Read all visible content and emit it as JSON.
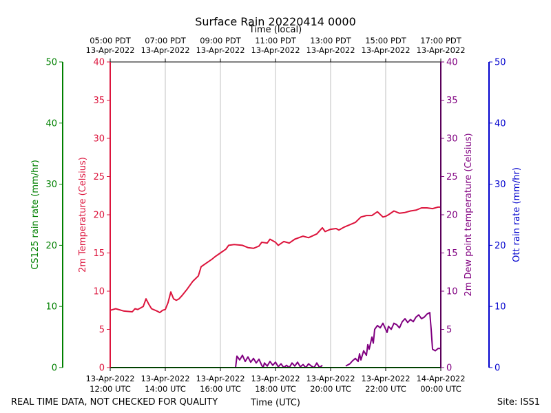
{
  "chart_data": {
    "type": "line",
    "title": "Surface Rain 20220414 0000",
    "top_axis_label": "Time (local)",
    "bottom_axis_label": "Time (UTC)",
    "footer_left": "REAL TIME DATA, NOT CHECKED FOR QUALITY",
    "footer_right": "Site: ISS1",
    "x_range_hours_utc": [
      12,
      24
    ],
    "bottom_ticks": [
      {
        "hour": 12,
        "line1": "13-Apr-2022",
        "line2": "12:00 UTC"
      },
      {
        "hour": 14,
        "line1": "13-Apr-2022",
        "line2": "14:00 UTC"
      },
      {
        "hour": 16,
        "line1": "13-Apr-2022",
        "line2": "16:00 UTC"
      },
      {
        "hour": 18,
        "line1": "13-Apr-2022",
        "line2": "18:00 UTC"
      },
      {
        "hour": 20,
        "line1": "13-Apr-2022",
        "line2": "20:00 UTC"
      },
      {
        "hour": 22,
        "line1": "13-Apr-2022",
        "line2": "22:00 UTC"
      },
      {
        "hour": 24,
        "line1": "14-Apr-2022",
        "line2": "00:00 UTC"
      }
    ],
    "top_ticks": [
      {
        "hour": 12,
        "line1": "05:00 PDT",
        "line2": "13-Apr-2022"
      },
      {
        "hour": 14,
        "line1": "07:00 PDT",
        "line2": "13-Apr-2022"
      },
      {
        "hour": 16,
        "line1": "09:00 PDT",
        "line2": "13-Apr-2022"
      },
      {
        "hour": 18,
        "line1": "11:00 PDT",
        "line2": "13-Apr-2022"
      },
      {
        "hour": 20,
        "line1": "13:00 PDT",
        "line2": "13-Apr-2022"
      },
      {
        "hour": 22,
        "line1": "15:00 PDT",
        "line2": "13-Apr-2022"
      },
      {
        "hour": 24,
        "line1": "17:00 PDT",
        "line2": "13-Apr-2022"
      }
    ],
    "axes": {
      "temperature": {
        "label": "2m Temperature (Celsius)",
        "ylim": [
          0,
          40
        ],
        "ticks": [
          0,
          5,
          10,
          15,
          20,
          25,
          30,
          35,
          40
        ],
        "color": "#dc143c"
      },
      "dewpoint": {
        "label": "2m Dew point temperature (Celsius)",
        "ylim": [
          0,
          40
        ],
        "ticks": [
          0,
          5,
          10,
          15,
          20,
          25,
          30,
          35,
          40
        ],
        "color": "#800080"
      },
      "cs125": {
        "label": "CS125 rain rate (mm/hr)",
        "ylim": [
          0,
          50
        ],
        "ticks": [
          0,
          10,
          20,
          30,
          40,
          50
        ],
        "color": "#008000"
      },
      "ott": {
        "label": "Ott rain rate (mm/hr)",
        "ylim": [
          0,
          50
        ],
        "ticks": [
          0,
          10,
          20,
          30,
          40,
          50
        ],
        "color": "#0000cd"
      }
    },
    "series": [
      {
        "name": "2m Temperature",
        "axis": "temperature",
        "color": "#dc143c",
        "x": [
          12.0,
          12.2,
          12.5,
          12.8,
          12.9,
          13.0,
          13.2,
          13.3,
          13.4,
          13.5,
          13.7,
          13.8,
          13.9,
          14.0,
          14.1,
          14.2,
          14.3,
          14.4,
          14.5,
          14.6,
          14.8,
          15.0,
          15.2,
          15.3,
          15.5,
          15.7,
          15.8,
          16.0,
          16.2,
          16.3,
          16.5,
          16.8,
          17.0,
          17.2,
          17.4,
          17.5,
          17.7,
          17.8,
          18.0,
          18.1,
          18.3,
          18.5,
          18.7,
          19.0,
          19.2,
          19.5,
          19.7,
          19.8,
          20.0,
          20.2,
          20.3,
          20.5,
          20.7,
          20.9,
          21.1,
          21.3,
          21.5,
          21.7,
          21.9,
          22.0,
          22.1,
          22.3,
          22.5,
          22.7,
          22.9,
          23.1,
          23.3,
          23.5,
          23.7,
          23.9,
          24.0
        ],
        "values": [
          7.5,
          7.7,
          7.4,
          7.3,
          7.7,
          7.6,
          8.0,
          9.0,
          8.3,
          7.7,
          7.4,
          7.2,
          7.5,
          7.6,
          8.5,
          9.9,
          9.0,
          8.8,
          9.0,
          9.4,
          10.3,
          11.3,
          12.0,
          13.2,
          13.7,
          14.2,
          14.5,
          15.0,
          15.5,
          16.0,
          16.1,
          16.0,
          15.7,
          15.6,
          15.9,
          16.4,
          16.3,
          16.8,
          16.4,
          16.0,
          16.5,
          16.3,
          16.8,
          17.2,
          17.0,
          17.5,
          18.3,
          17.8,
          18.1,
          18.2,
          18.0,
          18.4,
          18.7,
          19.0,
          19.7,
          19.9,
          19.9,
          20.4,
          19.7,
          19.8,
          20.0,
          20.5,
          20.2,
          20.3,
          20.5,
          20.6,
          20.9,
          20.9,
          20.8,
          21.0,
          21.0
        ]
      },
      {
        "name": "2m Dew point temperature",
        "axis": "dewpoint",
        "color": "#800080",
        "segments": [
          {
            "x": [
              16.55,
              16.6,
              16.7,
              16.8,
              16.9,
              17.0,
              17.1,
              17.2,
              17.3,
              17.4,
              17.5,
              17.55,
              17.6,
              17.7,
              17.8,
              17.9,
              18.0,
              18.1,
              18.2,
              18.3,
              18.4,
              18.5,
              18.6,
              18.7,
              18.8,
              18.9,
              19.0,
              19.1,
              19.2,
              19.3,
              19.4,
              19.5,
              19.6,
              19.7
            ],
            "values": [
              0.0,
              1.5,
              1.0,
              1.6,
              0.8,
              1.4,
              0.7,
              1.2,
              0.6,
              1.1,
              0.3,
              0.0,
              0.6,
              0.2,
              0.8,
              0.3,
              0.7,
              0.1,
              0.5,
              0.0,
              0.3,
              0.0,
              0.6,
              0.2,
              0.7,
              0.1,
              0.4,
              0.0,
              0.5,
              0.2,
              0.0,
              0.6,
              0.0,
              0.3
            ]
          },
          {
            "x": [
              20.55,
              20.7,
              20.8,
              20.9,
              21.0,
              21.05,
              21.1,
              21.2,
              21.3,
              21.35,
              21.4,
              21.5,
              21.55,
              21.6,
              21.7,
              21.8,
              21.9,
              22.0,
              22.05,
              22.1,
              22.2,
              22.3,
              22.4,
              22.5,
              22.6,
              22.7,
              22.8,
              22.9,
              23.0,
              23.1,
              23.2,
              23.3,
              23.4,
              23.5,
              23.6,
              23.65,
              23.7,
              23.8,
              23.9,
              24.0
            ],
            "values": [
              0.2,
              0.5,
              0.9,
              1.2,
              0.8,
              1.8,
              1.0,
              2.2,
              1.6,
              3.0,
              2.4,
              4.0,
              3.2,
              5.0,
              5.5,
              5.2,
              5.8,
              5.0,
              4.6,
              5.4,
              5.0,
              5.8,
              5.6,
              5.2,
              6.0,
              6.4,
              5.9,
              6.3,
              6.0,
              6.6,
              6.9,
              6.4,
              6.6,
              7.0,
              7.2,
              5.0,
              2.4,
              2.2,
              2.5,
              2.5
            ]
          }
        ]
      },
      {
        "name": "CS125 rain rate",
        "axis": "cs125",
        "color": "#008000",
        "x": [
          12,
          24
        ],
        "values": [
          0,
          0
        ]
      }
    ]
  }
}
